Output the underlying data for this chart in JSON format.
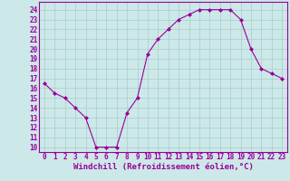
{
  "x": [
    0,
    1,
    2,
    3,
    4,
    5,
    6,
    7,
    8,
    9,
    10,
    11,
    12,
    13,
    14,
    15,
    16,
    17,
    18,
    19,
    20,
    21,
    22,
    23
  ],
  "y": [
    16.5,
    15.5,
    15.0,
    14.0,
    13.0,
    10.0,
    10.0,
    10.0,
    13.5,
    15.0,
    19.5,
    21.0,
    22.0,
    23.0,
    23.5,
    24.0,
    24.0,
    24.0,
    24.0,
    23.0,
    20.0,
    18.0,
    17.5,
    17.0
  ],
  "line_color": "#990099",
  "marker": "D",
  "markersize": 2.0,
  "linewidth": 0.8,
  "xlabel": "Windchill (Refroidissement éolien,°C)",
  "xlim": [
    -0.5,
    23.5
  ],
  "ylim": [
    9.5,
    24.8
  ],
  "yticks": [
    10,
    11,
    12,
    13,
    14,
    15,
    16,
    17,
    18,
    19,
    20,
    21,
    22,
    23,
    24
  ],
  "xticks": [
    0,
    1,
    2,
    3,
    4,
    5,
    6,
    7,
    8,
    9,
    10,
    11,
    12,
    13,
    14,
    15,
    16,
    17,
    18,
    19,
    20,
    21,
    22,
    23
  ],
  "bg_color": "#cce8e8",
  "grid_color": "#aacccc",
  "tick_label_color": "#990099",
  "xlabel_color": "#990099",
  "xlabel_fontsize": 6.5,
  "tick_fontsize": 5.5,
  "spine_color": "#990099"
}
